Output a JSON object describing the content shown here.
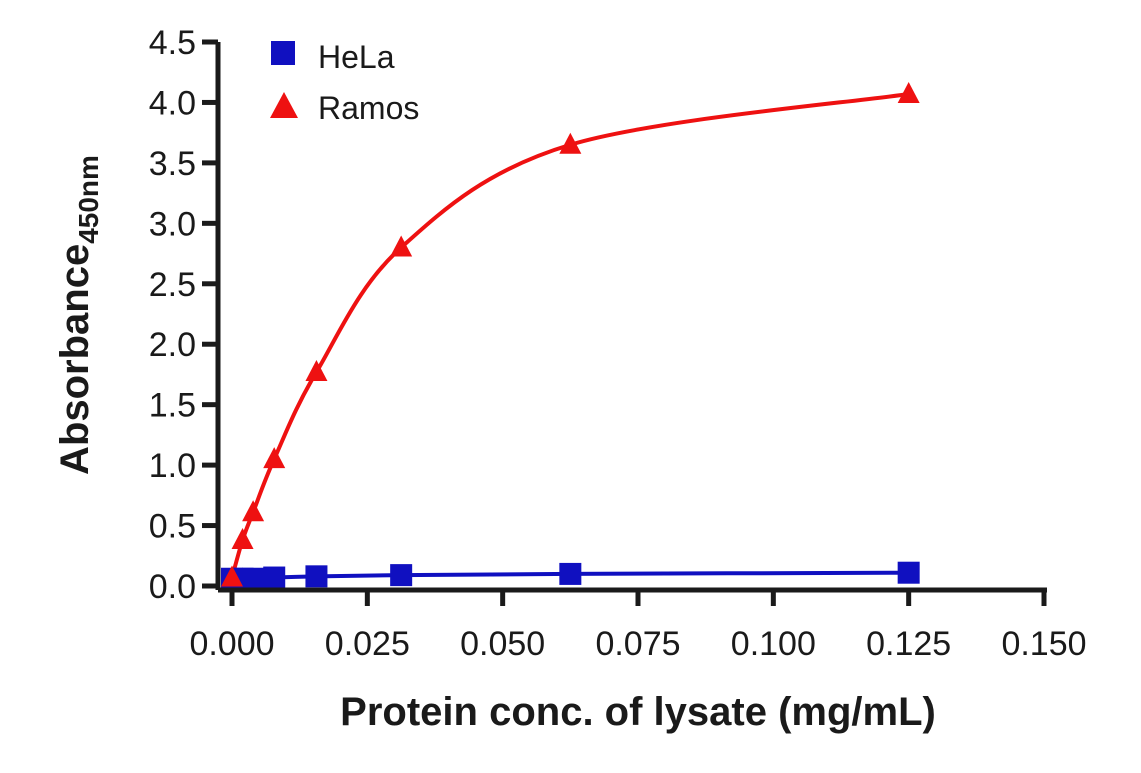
{
  "chart_data": {
    "type": "line",
    "title": "",
    "xlabel": "Protein conc. of lysate (mg/mL)",
    "ylabel": "Absorbance",
    "ylabel_subscript": "450nm",
    "xlim": [
      0,
      0.15
    ],
    "ylim": [
      0,
      4.5
    ],
    "xticks": [
      "0.000",
      "0.025",
      "0.050",
      "0.075",
      "0.100",
      "0.125",
      "0.150"
    ],
    "yticks": [
      "0.0",
      "0.5",
      "1.0",
      "1.5",
      "2.0",
      "2.5",
      "3.0",
      "3.5",
      "4.0",
      "4.5"
    ],
    "grid": false,
    "legend_position": "top-left",
    "x": [
      0,
      0.00195,
      0.0039,
      0.0078,
      0.0156,
      0.03125,
      0.0625,
      0.125
    ],
    "series": [
      {
        "name": "HeLa",
        "marker": "square",
        "color": "#1010c0",
        "values": [
          0.06,
          0.06,
          0.06,
          0.07,
          0.08,
          0.09,
          0.1,
          0.11
        ]
      },
      {
        "name": "Ramos",
        "marker": "triangle",
        "color": "#ee1111",
        "values": [
          0.07,
          0.38,
          0.61,
          1.05,
          1.77,
          2.8,
          3.65,
          4.07
        ]
      }
    ]
  }
}
